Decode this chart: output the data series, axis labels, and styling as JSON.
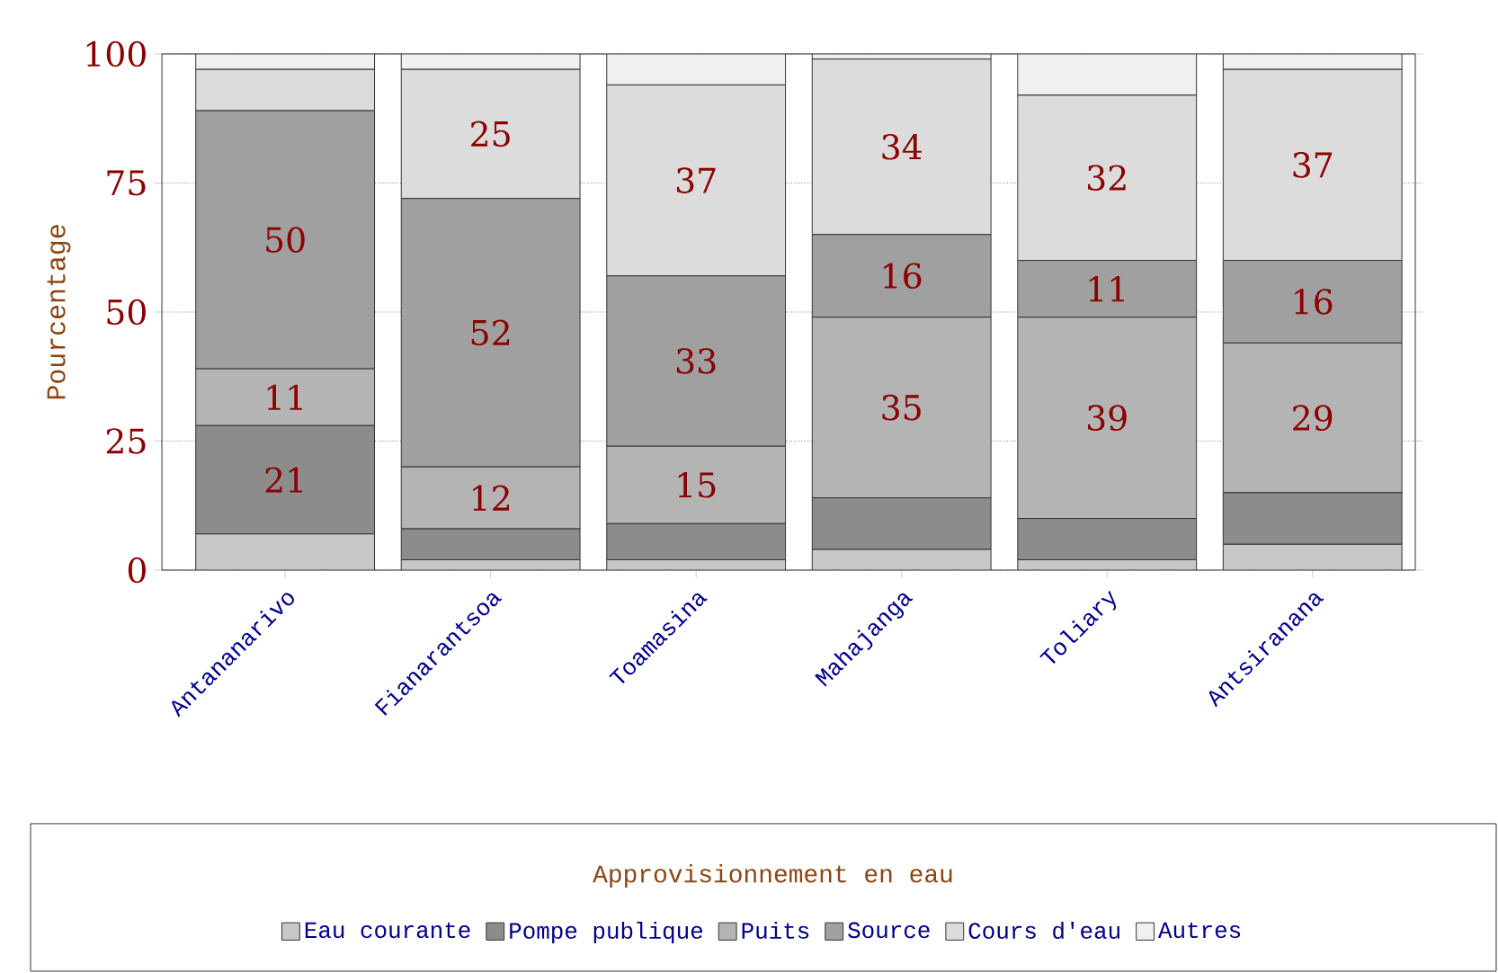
{
  "chart_data": {
    "type": "bar",
    "stacked": true,
    "ylabel": "Pourcentage",
    "legend_title": "Approvisionnement en eau",
    "legend": "bottom",
    "grid": "y",
    "categories": [
      "Antananarivo",
      "Fianarantsoa",
      "Toamasina",
      "Mahajanga",
      "Toliary",
      "Antsiranana"
    ],
    "ylim": [
      0,
      100
    ],
    "yticks": [
      0,
      25,
      50,
      75,
      100
    ],
    "series": [
      {
        "name": "Eau courante",
        "color": "#c8c8c8",
        "values": [
          7,
          2,
          2,
          4,
          2,
          5
        ]
      },
      {
        "name": "Pompe publique",
        "color": "#8c8c8c",
        "values": [
          21,
          6,
          7,
          10,
          8,
          10
        ],
        "value_labels": [
          "21",
          null,
          null,
          null,
          null,
          null
        ]
      },
      {
        "name": "Puits",
        "color": "#b4b4b4",
        "values": [
          11,
          12,
          15,
          35,
          39,
          29
        ],
        "value_labels": [
          "11",
          "12",
          "15",
          "35",
          "39",
          "29"
        ]
      },
      {
        "name": "Source",
        "color": "#a0a0a0",
        "values": [
          50,
          52,
          33,
          16,
          11,
          16
        ],
        "value_labels": [
          "50",
          "52",
          "33",
          "16",
          "11",
          "16"
        ]
      },
      {
        "name": "Cours d'eau",
        "color": "#dcdcdc",
        "values": [
          8,
          25,
          37,
          34,
          32,
          37
        ],
        "value_labels": [
          null,
          "25",
          "37",
          "34",
          "32",
          "37"
        ]
      },
      {
        "name": "Autres",
        "color": "#f0f0f0",
        "values": [
          3,
          3,
          6,
          1,
          8,
          3
        ]
      }
    ]
  }
}
